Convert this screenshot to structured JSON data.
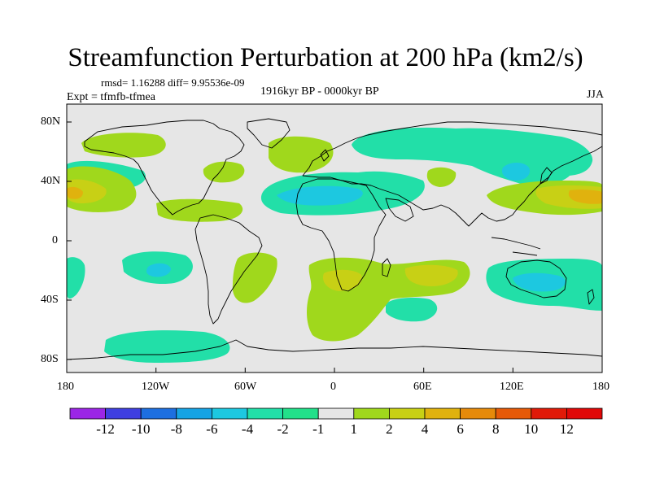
{
  "title": "Streamfunction Perturbation at 200 hPa (km2/s)",
  "stats": "rmsd= 1.16288 diff= 9.95536e-09",
  "experiment": "Expt = tfmfb-tfmea",
  "period": "1916kyr BP - 0000kyr BP",
  "season": "JJA",
  "map": {
    "projection": "cylindrical-equidistant",
    "lon_range": [
      -180,
      180
    ],
    "lat_range": [
      -90,
      90
    ],
    "background_color": "#e6e6e6",
    "x_tick_labels": [
      "180",
      "120W",
      "60W",
      "0",
      "60E",
      "120E",
      "180"
    ],
    "y_tick_labels": [
      "80N",
      "40N",
      "0",
      "40S",
      "80S"
    ]
  },
  "colorbar": {
    "labels": [
      "-12",
      "-10",
      "-8",
      "-6",
      "-4",
      "-2",
      "-1",
      "1",
      "2",
      "4",
      "6",
      "8",
      "10",
      "12"
    ],
    "colors": [
      "#9b26e6",
      "#3f3fe0",
      "#1d6fe0",
      "#16a3e4",
      "#1dc8e0",
      "#22dfa8",
      "#22e08a",
      "#e6e6e6",
      "#a0d81c",
      "#c8d015",
      "#e0b20e",
      "#e68a0a",
      "#e65a08",
      "#e01a08",
      "#e00808"
    ]
  },
  "chart_data": {
    "type": "heatmap",
    "title": "Streamfunction Perturbation at 200 hPa (km2/s)",
    "variable": "streamfunction perturbation",
    "level": "200 hPa",
    "units": "km2/s",
    "experiment": "tfmfb-tfmea",
    "period": "1916kyr BP - 0000kyr BP",
    "season": "JJA",
    "contour_levels": [
      -12,
      -10,
      -8,
      -6,
      -4,
      -2,
      -1,
      1,
      2,
      4,
      6,
      8,
      10,
      12
    ],
    "regions": [
      {
        "name": "Central North Pacific high",
        "category": "2 to 4",
        "contains_core": "4 to 6",
        "lon": -170,
        "lat": 32
      },
      {
        "name": "North Pacific ridge",
        "category": "1 to 2",
        "lon": -150,
        "lat": 70
      },
      {
        "name": "Northeast Pacific trough",
        "category": "-2 to -1",
        "lon": -150,
        "lat": 45
      },
      {
        "name": "North America band",
        "category": "1 to 2",
        "lon": -85,
        "lat": 45
      },
      {
        "name": "Caribbean high",
        "category": "1 to 2",
        "lon": -75,
        "lat": 22
      },
      {
        "name": "North Atlantic high",
        "category": "1 to 2",
        "lon": -15,
        "lat": 60
      },
      {
        "name": "Atlantic–North Africa trough",
        "category": "-4 to -2",
        "lon": -10,
        "lat": 28
      },
      {
        "name": "Northern Eurasia trough",
        "category": "-2 to -1",
        "lon": 100,
        "lat": 60
      },
      {
        "name": "East Asia ridge",
        "category": "1 to 2",
        "lon": 105,
        "lat": 38
      },
      {
        "name": "Eastern Asia trough",
        "category": "-2 to -1",
        "lon": 130,
        "lat": 40
      },
      {
        "name": "Western Pacific high",
        "category": "2 to 4",
        "contains_core": "4 to 6",
        "lon": 165,
        "lat": 32
      },
      {
        "name": "Caspian patch",
        "category": "1 to 2",
        "lon": 50,
        "lat": 45
      },
      {
        "name": "Southeast Pacific trough",
        "category": "-4 to -2",
        "lon": -130,
        "lat": -20
      },
      {
        "name": "South Atlantic high",
        "category": "2 to 4",
        "lon": 15,
        "lat": -30
      },
      {
        "name": "Indian Ocean high",
        "category": "2 to 4",
        "lon": 65,
        "lat": -25
      },
      {
        "name": "Southern Indian Ocean trough",
        "category": "-2 to -1",
        "lon": 45,
        "lat": -55
      },
      {
        "name": "Australia trough",
        "category": "-2 to -1",
        "lon": 140,
        "lat": -35
      },
      {
        "name": "Southern Ocean Pacific trough",
        "category": "-2 to -1",
        "lon": -130,
        "lat": -70
      },
      {
        "name": "South America high",
        "category": "1 to 2",
        "lon": -70,
        "lat": -35
      }
    ]
  }
}
